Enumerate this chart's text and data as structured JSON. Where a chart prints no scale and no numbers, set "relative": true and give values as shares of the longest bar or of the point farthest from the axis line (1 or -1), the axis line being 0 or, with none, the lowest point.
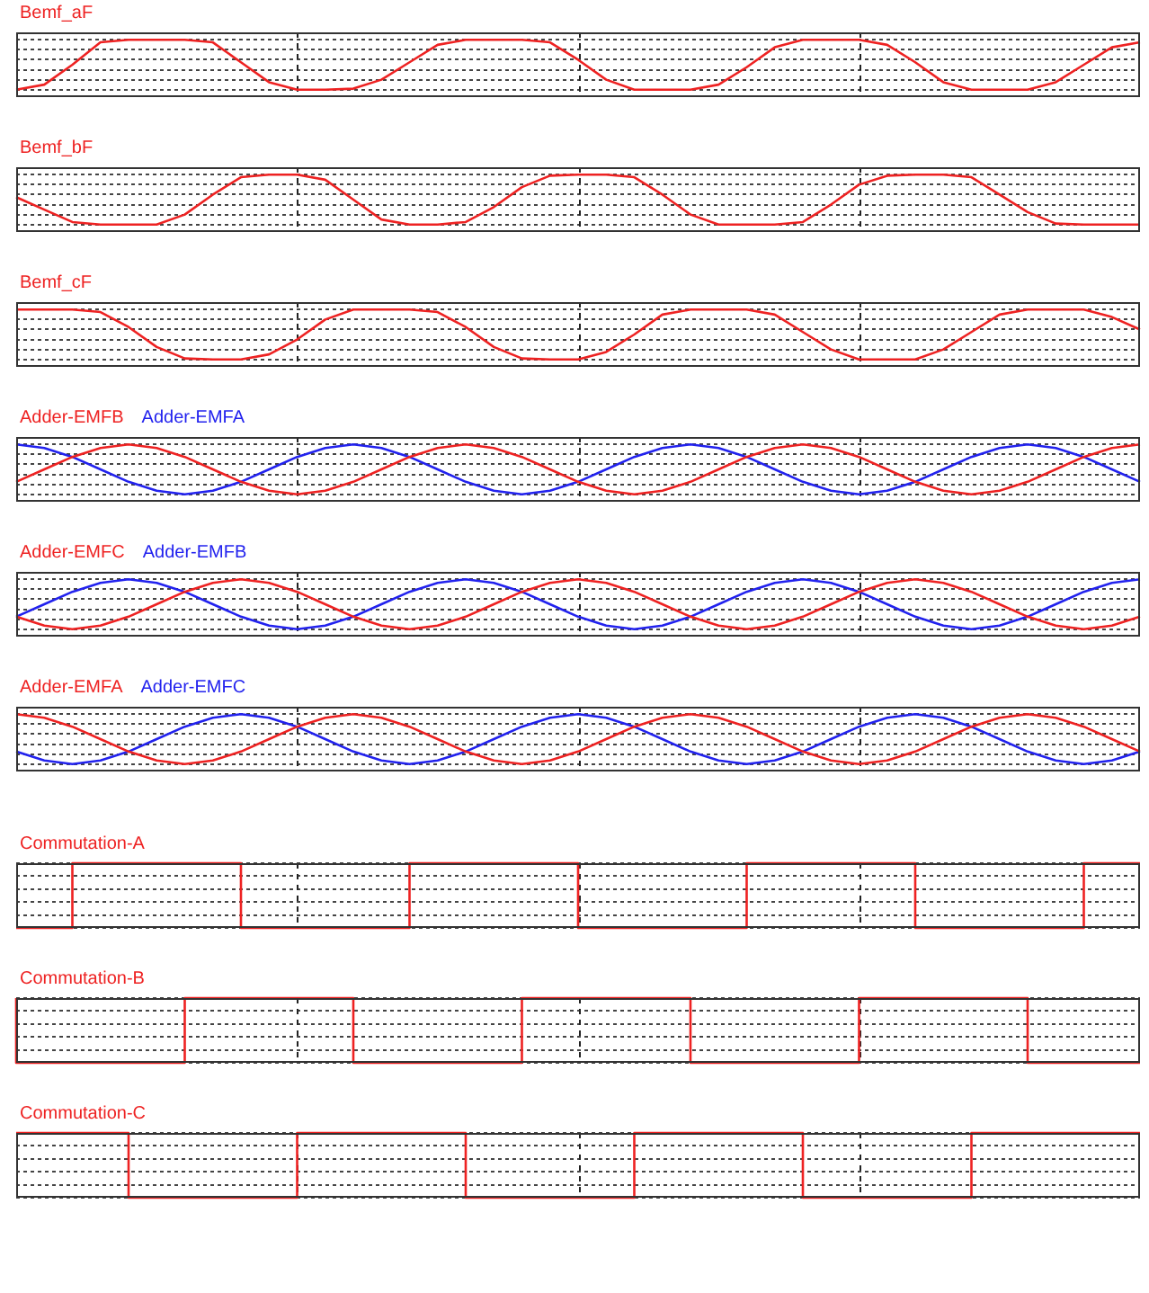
{
  "chart_data": [
    {
      "type": "line",
      "relative": true,
      "grid": true,
      "categories": [
        null,
        null,
        null,
        null,
        null,
        null,
        null,
        null,
        null,
        null,
        null,
        null,
        null,
        null,
        null,
        null,
        null,
        null,
        null,
        null,
        null,
        null,
        null,
        null,
        null,
        null,
        null,
        null,
        null,
        null,
        null,
        null,
        null,
        null,
        null,
        null,
        null,
        null,
        null,
        null,
        null
      ],
      "series": [
        {
          "name": "Bemf_aF",
          "color": "#ee2222",
          "values": [
            0,
            0.1,
            0.5,
            0.95,
            1,
            1,
            1,
            0.95,
            0.55,
            0.15,
            0,
            0,
            0.02,
            0.2,
            0.55,
            0.9,
            1,
            1,
            1,
            0.95,
            0.6,
            0.2,
            0,
            0,
            0,
            0.1,
            0.45,
            0.85,
            1,
            1,
            1,
            0.9,
            0.55,
            0.15,
            0,
            0,
            0,
            0.15,
            0.5,
            0.85,
            0.95
          ]
        }
      ]
    },
    {
      "type": "line",
      "relative": true,
      "grid": true,
      "categories": [
        null,
        null,
        null,
        null,
        null,
        null,
        null,
        null,
        null,
        null,
        null,
        null,
        null,
        null,
        null,
        null,
        null,
        null,
        null,
        null,
        null,
        null,
        null,
        null,
        null,
        null,
        null,
        null,
        null,
        null,
        null,
        null,
        null,
        null,
        null,
        null,
        null,
        null,
        null,
        null,
        null
      ],
      "series": [
        {
          "name": "Bemf_bF",
          "color": "#ee2222",
          "values": [
            0.55,
            0.3,
            0.05,
            0,
            0,
            0,
            0.2,
            0.6,
            0.95,
            1,
            1,
            0.9,
            0.5,
            0.1,
            0,
            0,
            0.05,
            0.35,
            0.75,
            0.98,
            1,
            1,
            0.95,
            0.6,
            0.2,
            0,
            0,
            0,
            0.05,
            0.4,
            0.8,
            0.98,
            1,
            1,
            0.95,
            0.6,
            0.25,
            0.02,
            0,
            0,
            0
          ]
        }
      ]
    },
    {
      "type": "line",
      "relative": true,
      "grid": true,
      "categories": [
        null,
        null,
        null,
        null,
        null,
        null,
        null,
        null,
        null,
        null,
        null,
        null,
        null,
        null,
        null,
        null,
        null,
        null,
        null,
        null,
        null,
        null,
        null,
        null,
        null,
        null,
        null,
        null,
        null,
        null,
        null,
        null,
        null,
        null,
        null,
        null,
        null,
        null,
        null,
        null,
        null
      ],
      "series": [
        {
          "name": "Bemf_cF",
          "color": "#ee2222",
          "values": [
            1,
            1,
            1,
            0.95,
            0.65,
            0.25,
            0.02,
            0,
            0,
            0.1,
            0.4,
            0.8,
            1,
            1,
            1,
            0.95,
            0.65,
            0.25,
            0.02,
            0,
            0,
            0.15,
            0.5,
            0.9,
            1,
            1,
            1,
            0.9,
            0.55,
            0.2,
            0,
            0,
            0,
            0.2,
            0.55,
            0.9,
            1,
            1,
            1,
            0.85,
            0.6
          ]
        }
      ]
    },
    {
      "type": "line",
      "relative": true,
      "grid": true,
      "categories": [
        null,
        null,
        null,
        null,
        null,
        null,
        null,
        null,
        null,
        null,
        null,
        null,
        null,
        null,
        null,
        null,
        null,
        null,
        null,
        null,
        null,
        null,
        null,
        null,
        null,
        null,
        null,
        null,
        null,
        null,
        null,
        null,
        null,
        null,
        null,
        null,
        null,
        null,
        null,
        null,
        null
      ],
      "series": [
        {
          "name": "Adder-EMFB",
          "color": "#ee2222",
          "values": [
            0.25,
            0.5,
            0.75,
            0.93,
            1,
            0.93,
            0.75,
            0.5,
            0.25,
            0.07,
            0,
            0.07,
            0.25,
            0.5,
            0.75,
            0.93,
            1,
            0.93,
            0.75,
            0.5,
            0.25,
            0.07,
            0,
            0.07,
            0.25,
            0.5,
            0.75,
            0.93,
            1,
            0.93,
            0.75,
            0.5,
            0.25,
            0.07,
            0,
            0.07,
            0.25,
            0.5,
            0.75,
            0.93,
            1
          ]
        },
        {
          "name": "Adder-EMFA",
          "color": "#2222ee",
          "values": [
            1,
            0.93,
            0.75,
            0.5,
            0.25,
            0.07,
            0,
            0.07,
            0.25,
            0.5,
            0.75,
            0.93,
            1,
            0.93,
            0.75,
            0.5,
            0.25,
            0.07,
            0,
            0.07,
            0.25,
            0.5,
            0.75,
            0.93,
            1,
            0.93,
            0.75,
            0.5,
            0.25,
            0.07,
            0,
            0.07,
            0.25,
            0.5,
            0.75,
            0.93,
            1,
            0.93,
            0.75,
            0.5,
            0.25
          ]
        }
      ]
    },
    {
      "type": "line",
      "relative": true,
      "grid": true,
      "categories": [
        null,
        null,
        null,
        null,
        null,
        null,
        null,
        null,
        null,
        null,
        null,
        null,
        null,
        null,
        null,
        null,
        null,
        null,
        null,
        null,
        null,
        null,
        null,
        null,
        null,
        null,
        null,
        null,
        null,
        null,
        null,
        null,
        null,
        null,
        null,
        null,
        null,
        null,
        null,
        null,
        null
      ],
      "series": [
        {
          "name": "Adder-EMFC",
          "color": "#ee2222",
          "values": [
            0.25,
            0.07,
            0,
            0.07,
            0.25,
            0.5,
            0.75,
            0.93,
            1,
            0.93,
            0.75,
            0.5,
            0.25,
            0.07,
            0,
            0.07,
            0.25,
            0.5,
            0.75,
            0.93,
            1,
            0.93,
            0.75,
            0.5,
            0.25,
            0.07,
            0,
            0.07,
            0.25,
            0.5,
            0.75,
            0.93,
            1,
            0.93,
            0.75,
            0.5,
            0.25,
            0.07,
            0,
            0.07,
            0.25
          ]
        },
        {
          "name": "Adder-EMFB",
          "color": "#2222ee",
          "values": [
            0.25,
            0.5,
            0.75,
            0.93,
            1,
            0.93,
            0.75,
            0.5,
            0.25,
            0.07,
            0,
            0.07,
            0.25,
            0.5,
            0.75,
            0.93,
            1,
            0.93,
            0.75,
            0.5,
            0.25,
            0.07,
            0,
            0.07,
            0.25,
            0.5,
            0.75,
            0.93,
            1,
            0.93,
            0.75,
            0.5,
            0.25,
            0.07,
            0,
            0.07,
            0.25,
            0.5,
            0.75,
            0.93,
            1
          ]
        }
      ]
    },
    {
      "type": "line",
      "relative": true,
      "grid": true,
      "categories": [
        null,
        null,
        null,
        null,
        null,
        null,
        null,
        null,
        null,
        null,
        null,
        null,
        null,
        null,
        null,
        null,
        null,
        null,
        null,
        null,
        null,
        null,
        null,
        null,
        null,
        null,
        null,
        null,
        null,
        null,
        null,
        null,
        null,
        null,
        null,
        null,
        null,
        null,
        null,
        null,
        null
      ],
      "series": [
        {
          "name": "Adder-EMFA",
          "color": "#ee2222",
          "values": [
            1,
            0.93,
            0.75,
            0.5,
            0.25,
            0.07,
            0,
            0.07,
            0.25,
            0.5,
            0.75,
            0.93,
            1,
            0.93,
            0.75,
            0.5,
            0.25,
            0.07,
            0,
            0.07,
            0.25,
            0.5,
            0.75,
            0.93,
            1,
            0.93,
            0.75,
            0.5,
            0.25,
            0.07,
            0,
            0.07,
            0.25,
            0.5,
            0.75,
            0.93,
            1,
            0.93,
            0.75,
            0.5,
            0.25
          ]
        },
        {
          "name": "Adder-EMFC",
          "color": "#2222ee",
          "values": [
            0.25,
            0.07,
            0,
            0.07,
            0.25,
            0.5,
            0.75,
            0.93,
            1,
            0.93,
            0.75,
            0.5,
            0.25,
            0.07,
            0,
            0.07,
            0.25,
            0.5,
            0.75,
            0.93,
            1,
            0.93,
            0.75,
            0.5,
            0.25,
            0.07,
            0,
            0.07,
            0.25,
            0.5,
            0.75,
            0.93,
            1,
            0.93,
            0.75,
            0.5,
            0.25,
            0.07,
            0,
            0.07,
            0.25
          ]
        }
      ]
    },
    {
      "type": "step",
      "relative": true,
      "grid": true,
      "categories": [
        null,
        null,
        null,
        null,
        null,
        null,
        null,
        null,
        null,
        null,
        null,
        null,
        null,
        null,
        null,
        null,
        null,
        null,
        null,
        null,
        null,
        null,
        null,
        null,
        null,
        null,
        null,
        null,
        null,
        null,
        null,
        null,
        null,
        null,
        null,
        null,
        null,
        null,
        null,
        null,
        null,
        null,
        null,
        null,
        null,
        null,
        null,
        null,
        null,
        null,
        null,
        null,
        null,
        null,
        null,
        null,
        null,
        null,
        null,
        null,
        null,
        null,
        null,
        null,
        null,
        null,
        null,
        null,
        null,
        null,
        null,
        null,
        null,
        null,
        null,
        null,
        null,
        null,
        null,
        null,
        null,
        null,
        null,
        null,
        null,
        null,
        null,
        null,
        null,
        null,
        null,
        null,
        null,
        null,
        null,
        null,
        null,
        null,
        null,
        null,
        null,
        null,
        null,
        null,
        null,
        null,
        null,
        null,
        null,
        null,
        null,
        null,
        null,
        null,
        null,
        null,
        null,
        null,
        null,
        null,
        null,
        null,
        null,
        null,
        null,
        null,
        null,
        null,
        null,
        null,
        null,
        null,
        null,
        null,
        null,
        null,
        null,
        null,
        null,
        null,
        null,
        null,
        null,
        null,
        null,
        null,
        null,
        null,
        null,
        null,
        null,
        null,
        null,
        null,
        null,
        null,
        null,
        null,
        null,
        null,
        null,
        null,
        null,
        null,
        null,
        null,
        null,
        null,
        null,
        null,
        null,
        null,
        null,
        null,
        null,
        null,
        null,
        null,
        null,
        null,
        null,
        null,
        null,
        null,
        null,
        null,
        null,
        null,
        null,
        null,
        null,
        null,
        null,
        null,
        null,
        null,
        null,
        null,
        null,
        null,
        null
      ],
      "series": [
        {
          "name": "Commutation-A",
          "color": "#ee2222",
          "values": [
            0,
            0,
            0,
            0,
            0,
            0,
            0,
            0,
            0,
            0,
            0,
            1,
            1,
            1,
            1,
            1,
            1,
            1,
            1,
            1,
            1,
            1,
            1,
            1,
            1,
            1,
            1,
            1,
            1,
            1,
            1,
            1,
            1,
            1,
            1,
            1,
            1,
            1,
            1,
            1,
            1,
            0,
            0,
            0,
            0,
            0,
            0,
            0,
            0,
            0,
            0,
            0,
            0,
            0,
            0,
            0,
            0,
            0,
            0,
            0,
            0,
            0,
            0,
            0,
            0,
            0,
            0,
            0,
            0,
            0,
            0,
            1,
            1,
            1,
            1,
            1,
            1,
            1,
            1,
            1,
            1,
            1,
            1,
            1,
            1,
            1,
            1,
            1,
            1,
            1,
            1,
            1,
            1,
            1,
            1,
            1,
            1,
            1,
            1,
            1,
            1,
            0,
            0,
            0,
            0,
            0,
            0,
            0,
            0,
            0,
            0,
            0,
            0,
            0,
            0,
            0,
            0,
            0,
            0,
            0,
            0,
            0,
            0,
            0,
            0,
            0,
            0,
            0,
            0,
            0,
            0,
            1,
            1,
            1,
            1,
            1,
            1,
            1,
            1,
            1,
            1,
            1,
            1,
            1,
            1,
            1,
            1,
            1,
            1,
            1,
            1,
            1,
            1,
            1,
            1,
            1,
            1,
            1,
            1,
            1,
            1,
            0,
            0,
            0,
            0,
            0,
            0,
            0,
            0,
            0,
            0,
            0,
            0,
            0,
            0,
            0,
            0,
            0,
            0,
            0,
            0,
            0,
            0,
            0,
            0,
            0,
            0,
            0,
            0,
            0,
            0,
            1,
            1,
            1,
            1,
            1,
            1,
            1,
            1,
            1,
            1
          ]
        }
      ]
    },
    {
      "type": "step",
      "relative": true,
      "grid": true,
      "categories": [
        null,
        null,
        null,
        null,
        null,
        null,
        null,
        null,
        null,
        null,
        null,
        null,
        null,
        null,
        null,
        null,
        null,
        null,
        null,
        null,
        null,
        null,
        null,
        null,
        null,
        null,
        null,
        null,
        null,
        null,
        null,
        null,
        null,
        null,
        null,
        null,
        null,
        null,
        null,
        null,
        null,
        null,
        null,
        null,
        null,
        null,
        null,
        null,
        null,
        null,
        null,
        null,
        null,
        null,
        null,
        null,
        null,
        null,
        null,
        null,
        null,
        null,
        null,
        null,
        null,
        null,
        null,
        null,
        null,
        null,
        null,
        null,
        null,
        null,
        null,
        null,
        null,
        null,
        null,
        null,
        null,
        null,
        null,
        null,
        null,
        null,
        null,
        null,
        null,
        null,
        null,
        null,
        null,
        null,
        null,
        null,
        null,
        null,
        null,
        null,
        null,
        null,
        null,
        null,
        null,
        null,
        null,
        null,
        null,
        null,
        null,
        null,
        null,
        null,
        null,
        null,
        null,
        null,
        null,
        null,
        null,
        null,
        null,
        null,
        null,
        null,
        null,
        null,
        null,
        null,
        null,
        null,
        null,
        null,
        null,
        null,
        null,
        null,
        null,
        null,
        null,
        null,
        null,
        null,
        null,
        null,
        null,
        null,
        null,
        null,
        null,
        null,
        null,
        null,
        null,
        null,
        null,
        null,
        null,
        null,
        null,
        null,
        null,
        null,
        null,
        null,
        null,
        null,
        null,
        null,
        null,
        null,
        null,
        null,
        null,
        null,
        null,
        null,
        null,
        null,
        null,
        null,
        null,
        null,
        null,
        null,
        null,
        null,
        null,
        null,
        null,
        null,
        null,
        null,
        null,
        null,
        null,
        null,
        null,
        null,
        null
      ],
      "series": [
        {
          "name": "Commutation-B",
          "color": "#ee2222",
          "values": [
            1,
            0,
            0,
            0,
            0,
            0,
            0,
            0,
            0,
            0,
            0,
            0,
            0,
            0,
            0,
            0,
            0,
            0,
            0,
            0,
            0,
            0,
            0,
            0,
            0,
            0,
            0,
            0,
            0,
            0,
            0,
            1,
            1,
            1,
            1,
            1,
            1,
            1,
            1,
            1,
            1,
            1,
            1,
            1,
            1,
            1,
            1,
            1,
            1,
            1,
            1,
            1,
            1,
            1,
            1,
            1,
            1,
            1,
            1,
            1,
            1,
            0,
            0,
            0,
            0,
            0,
            0,
            0,
            0,
            0,
            0,
            0,
            0,
            0,
            0,
            0,
            0,
            0,
            0,
            0,
            0,
            0,
            0,
            0,
            0,
            0,
            0,
            0,
            0,
            0,
            0,
            1,
            1,
            1,
            1,
            1,
            1,
            1,
            1,
            1,
            1,
            1,
            1,
            1,
            1,
            1,
            1,
            1,
            1,
            1,
            1,
            1,
            1,
            1,
            1,
            1,
            1,
            1,
            1,
            1,
            1,
            0,
            0,
            0,
            0,
            0,
            0,
            0,
            0,
            0,
            0,
            0,
            0,
            0,
            0,
            0,
            0,
            0,
            0,
            0,
            0,
            0,
            0,
            0,
            0,
            0,
            0,
            0,
            0,
            0,
            0,
            1,
            1,
            1,
            1,
            1,
            1,
            1,
            1,
            1,
            1,
            1,
            1,
            1,
            1,
            1,
            1,
            1,
            1,
            1,
            1,
            1,
            1,
            1,
            1,
            1,
            1,
            1,
            1,
            1,
            1,
            0,
            0,
            0,
            0,
            0,
            0,
            0,
            0,
            0,
            0,
            0,
            0,
            0,
            0,
            0,
            0,
            0,
            0,
            0,
            0
          ]
        }
      ]
    },
    {
      "type": "step",
      "relative": true,
      "grid": true,
      "categories": [
        null,
        null,
        null,
        null,
        null,
        null,
        null,
        null,
        null,
        null,
        null,
        null,
        null,
        null,
        null,
        null,
        null,
        null,
        null,
        null,
        null,
        null,
        null,
        null,
        null,
        null,
        null,
        null,
        null,
        null,
        null,
        null,
        null,
        null,
        null,
        null,
        null,
        null,
        null,
        null,
        null,
        null,
        null,
        null,
        null,
        null,
        null,
        null,
        null,
        null,
        null,
        null,
        null,
        null,
        null,
        null,
        null,
        null,
        null,
        null,
        null,
        null,
        null,
        null,
        null,
        null,
        null,
        null,
        null,
        null,
        null,
        null,
        null,
        null,
        null,
        null,
        null,
        null,
        null,
        null,
        null,
        null,
        null,
        null,
        null,
        null,
        null,
        null,
        null,
        null,
        null,
        null,
        null,
        null,
        null,
        null,
        null,
        null,
        null,
        null,
        null,
        null,
        null,
        null,
        null,
        null,
        null,
        null,
        null,
        null,
        null,
        null,
        null,
        null,
        null,
        null,
        null,
        null,
        null,
        null,
        null,
        null,
        null,
        null,
        null,
        null,
        null,
        null,
        null,
        null,
        null,
        null,
        null,
        null,
        null,
        null,
        null,
        null,
        null,
        null,
        null,
        null,
        null,
        null,
        null,
        null,
        null,
        null,
        null,
        null,
        null,
        null,
        null,
        null,
        null,
        null,
        null,
        null,
        null,
        null,
        null,
        null,
        null,
        null,
        null,
        null,
        null,
        null,
        null,
        null,
        null,
        null,
        null,
        null,
        null,
        null,
        null,
        null,
        null,
        null,
        null,
        null,
        null,
        null,
        null,
        null,
        null,
        null,
        null,
        null,
        null,
        null,
        null,
        null,
        null,
        null,
        null,
        null,
        null,
        null,
        null
      ],
      "series": [
        {
          "name": "Commutation-C",
          "color": "#ee2222",
          "values": [
            1,
            1,
            1,
            1,
            1,
            1,
            1,
            1,
            1,
            1,
            1,
            1,
            1,
            1,
            1,
            1,
            1,
            1,
            1,
            1,
            1,
            0,
            0,
            0,
            0,
            0,
            0,
            0,
            0,
            0,
            0,
            0,
            0,
            0,
            0,
            0,
            0,
            0,
            0,
            0,
            0,
            0,
            0,
            0,
            0,
            0,
            0,
            0,
            0,
            0,
            0,
            1,
            1,
            1,
            1,
            1,
            1,
            1,
            1,
            1,
            1,
            1,
            1,
            1,
            1,
            1,
            1,
            1,
            1,
            1,
            1,
            1,
            1,
            1,
            1,
            1,
            1,
            1,
            1,
            1,
            1,
            0,
            0,
            0,
            0,
            0,
            0,
            0,
            0,
            0,
            0,
            0,
            0,
            0,
            0,
            0,
            0,
            0,
            0,
            0,
            0,
            0,
            0,
            0,
            0,
            0,
            0,
            0,
            0,
            0,
            0,
            1,
            1,
            1,
            1,
            1,
            1,
            1,
            1,
            1,
            1,
            1,
            1,
            1,
            1,
            1,
            1,
            1,
            1,
            1,
            1,
            1,
            1,
            1,
            1,
            1,
            1,
            1,
            1,
            1,
            1,
            0,
            0,
            0,
            0,
            0,
            0,
            0,
            0,
            0,
            0,
            0,
            0,
            0,
            0,
            0,
            0,
            0,
            0,
            0,
            0,
            0,
            0,
            0,
            0,
            0,
            0,
            0,
            0,
            0,
            0,
            1,
            1,
            1,
            1,
            1,
            1,
            1,
            1,
            1,
            1,
            1,
            1,
            1,
            1,
            1,
            1,
            1,
            1,
            1,
            1,
            1,
            1,
            1,
            1,
            1,
            1,
            1,
            1,
            1,
            1
          ]
        }
      ]
    }
  ]
}
